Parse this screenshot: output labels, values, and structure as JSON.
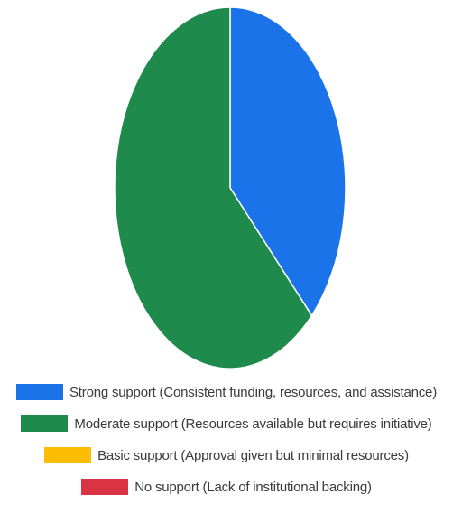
{
  "chart_data": {
    "type": "pie",
    "title": "",
    "categories": [
      "Strong support (Consistent funding, resources, and assistance)",
      "Moderate support (Resources available but requires initiative)",
      "Basic support (Approval given but minimal resources)",
      "No support (Lack of institutional backing)"
    ],
    "values": [
      37.5,
      62.5,
      0,
      0
    ],
    "colors": [
      "#1a73e8",
      "#1e8a4c",
      "#fbbc04",
      "#d93344"
    ],
    "legend": "bottom"
  },
  "legend": {
    "items": [
      {
        "label": "Strong support (Consistent funding, resources, and assistance)",
        "color": "#1a73e8"
      },
      {
        "label": "Moderate support (Resources available but requires initiative)",
        "color": "#1e8a4c"
      },
      {
        "label": "Basic support (Approval given but minimal resources)",
        "color": "#fbbc04"
      },
      {
        "label": "No support (Lack of institutional backing)",
        "color": "#d93344"
      }
    ]
  }
}
